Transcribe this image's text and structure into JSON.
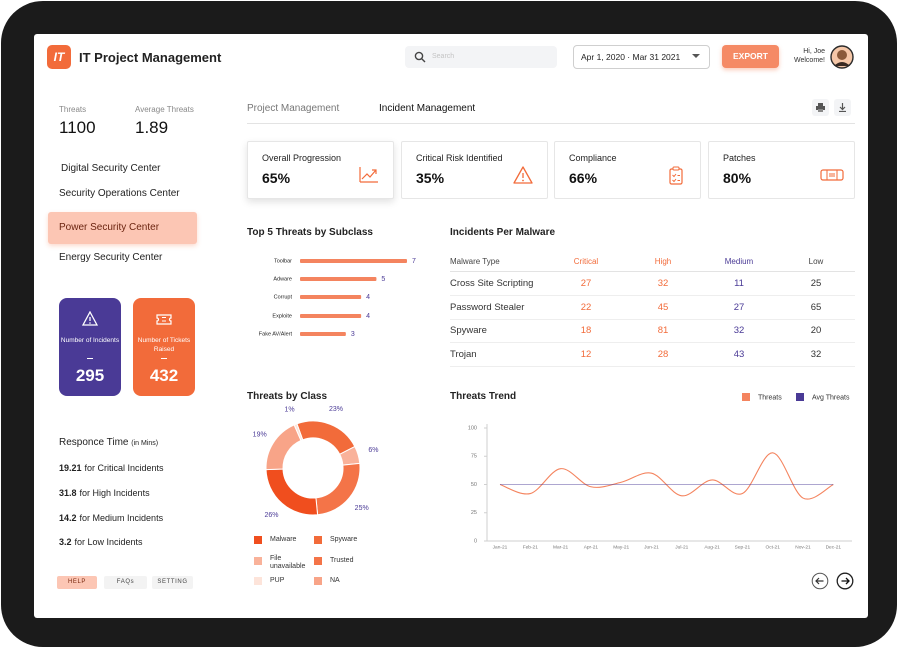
{
  "header": {
    "logo": "IT",
    "title": "IT Project Management",
    "search_placeholder": "Search",
    "date_range": "Apr 1, 2020 · Mar 31 2021",
    "export": "EXPORT",
    "greeting": "Hi, Joe",
    "welcome": "Welcome!"
  },
  "sidebar": {
    "stats": [
      {
        "label": "Threats",
        "value": 1100
      },
      {
        "label": "Average Threats",
        "value": 1.89
      }
    ],
    "nav": [
      {
        "label": "Digital Security Center",
        "active": false
      },
      {
        "label": "Security Operations Center",
        "active": false
      },
      {
        "label": "Power Security Center",
        "active": true
      },
      {
        "label": "Energy Security Center",
        "active": false
      }
    ],
    "tiles": [
      {
        "label": "Number of Incidents",
        "value": 295,
        "color": "#4a3a96"
      },
      {
        "label": "Number of Tickets Raised",
        "value": 432,
        "color": "#f26b3a"
      }
    ],
    "response_time": {
      "title": "Responce Time",
      "unit": "(in Mins)",
      "items": [
        {
          "value": 19.21,
          "label": "for Critical Incidents"
        },
        {
          "value": 31.8,
          "label": "for High Incidents"
        },
        {
          "value": 14.2,
          "label": "for Medium Incidents"
        },
        {
          "value": 3.2,
          "label": "for Low Incidents"
        }
      ]
    },
    "footer_buttons": [
      "HELP",
      "FAQs",
      "SETTING"
    ]
  },
  "tabs": [
    "Project Management",
    "Incident Management"
  ],
  "kpis": [
    {
      "label": "Overall Progression",
      "value": "65%"
    },
    {
      "label": "Critical Risk Identified",
      "value": "35%"
    },
    {
      "label": "Compliance",
      "value": "66%"
    },
    {
      "label": "Patches",
      "value": "80%"
    }
  ],
  "table": {
    "title": "Incidents Per Malware",
    "columns": [
      "Malware Type",
      "Critical",
      "High",
      "Medium",
      "Low"
    ],
    "rows": [
      [
        "Cross Site Scripting",
        27,
        32,
        11,
        25
      ],
      [
        "Password Stealer",
        22,
        45,
        27,
        65
      ],
      [
        "Spyware",
        18,
        81,
        32,
        20
      ],
      [
        "Trojan",
        12,
        28,
        43,
        32
      ]
    ]
  },
  "chart_data": [
    {
      "type": "bar",
      "title": "Top 5 Threats by Subclass",
      "categories": [
        "Toolbar",
        "Adware",
        "Corrupt",
        "Exploite",
        "Fake AV/Alert"
      ],
      "values": [
        7,
        5,
        4,
        4,
        3
      ],
      "color": "#f4845f"
    },
    {
      "type": "pie",
      "donut": true,
      "title": "Threats by Class",
      "categories": [
        "Spyware",
        "File unavailable",
        "Trusted",
        "Malware",
        "NA",
        "PUP"
      ],
      "values": [
        23,
        6,
        25,
        26,
        19,
        1
      ],
      "value_labels": [
        "23%",
        "6%",
        "25%",
        "26%",
        "19%",
        "1%"
      ],
      "colors": [
        "#f26b3a",
        "#f9b29a",
        "#f47448",
        "#f04e1e",
        "#f8a488",
        "#fde4da"
      ]
    },
    {
      "type": "line",
      "title": "Threats Trend",
      "categories": [
        "Jan-21",
        "Feb-21",
        "Mar-21",
        "Apr-21",
        "May-21",
        "Jun-21",
        "Jul-21",
        "Aug-21",
        "Sep-21",
        "Oct-21",
        "Nov-21",
        "Dec-21"
      ],
      "series": [
        {
          "name": "Threats",
          "color": "#f4845f",
          "values": [
            50,
            42,
            64,
            48,
            52,
            60,
            40,
            54,
            42,
            78,
            38,
            50
          ]
        },
        {
          "name": "Avg Threats",
          "color": "#4a3a96",
          "values": [
            50,
            50,
            50,
            50,
            50,
            50,
            50,
            50,
            50,
            50,
            50,
            50
          ]
        }
      ],
      "ylim": [
        0,
        100
      ],
      "yticks": [
        0,
        25,
        50,
        75,
        100
      ],
      "legend": "top-right"
    }
  ]
}
